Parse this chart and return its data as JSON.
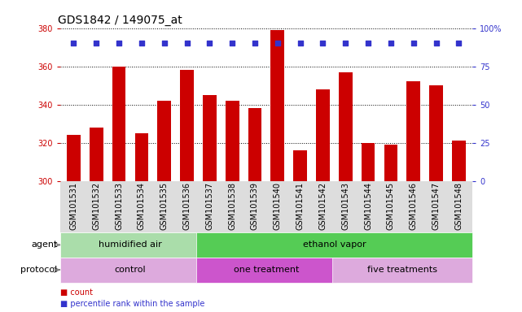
{
  "title": "GDS1842 / 149075_at",
  "samples": [
    "GSM101531",
    "GSM101532",
    "GSM101533",
    "GSM101534",
    "GSM101535",
    "GSM101536",
    "GSM101537",
    "GSM101538",
    "GSM101539",
    "GSM101540",
    "GSM101541",
    "GSM101542",
    "GSM101543",
    "GSM101544",
    "GSM101545",
    "GSM101546",
    "GSM101547",
    "GSM101548"
  ],
  "bar_values": [
    324,
    328,
    360,
    325,
    342,
    358,
    345,
    342,
    338,
    379,
    316,
    348,
    357,
    320,
    319,
    352,
    350,
    321
  ],
  "percentile_values": [
    90,
    90,
    90,
    90,
    90,
    90,
    90,
    90,
    90,
    90,
    90,
    90,
    90,
    90,
    90,
    90,
    90,
    90
  ],
  "bar_color": "#cc0000",
  "percentile_color": "#3333cc",
  "ymin": 300,
  "ymax": 380,
  "yticks": [
    300,
    320,
    340,
    360,
    380
  ],
  "y2min": 0,
  "y2max": 100,
  "y2ticks": [
    0,
    25,
    50,
    75,
    100
  ],
  "y2ticklabels": [
    "0",
    "25",
    "50",
    "75",
    "100%"
  ],
  "agent_groups": [
    {
      "label": "humidified air",
      "start": 0,
      "end": 6,
      "color": "#aaddaa"
    },
    {
      "label": "ethanol vapor",
      "start": 6,
      "end": 18,
      "color": "#55cc55"
    }
  ],
  "protocol_groups": [
    {
      "label": "control",
      "start": 0,
      "end": 6,
      "color": "#ddaadd"
    },
    {
      "label": "one treatment",
      "start": 6,
      "end": 12,
      "color": "#cc55cc"
    },
    {
      "label": "five treatments",
      "start": 12,
      "end": 18,
      "color": "#ddaadd"
    }
  ],
  "legend_items": [
    {
      "label": "count",
      "color": "#cc0000"
    },
    {
      "label": "percentile rank within the sample",
      "color": "#3333cc"
    }
  ],
  "plot_bg_color": "#ffffff",
  "tick_fontsize": 7,
  "label_fontsize": 8,
  "title_fontsize": 10
}
